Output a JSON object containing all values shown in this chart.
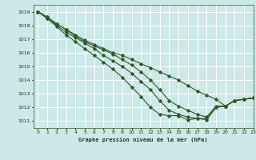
{
  "title": "Graphe pression niveau de la mer (hPa)",
  "background_color": "#cce8e8",
  "grid_color": "#ffffff",
  "line_color": "#2d5a27",
  "xlim": [
    -0.5,
    23
  ],
  "ylim": [
    1010.5,
    1019.5
  ],
  "yticks": [
    1011,
    1012,
    1013,
    1014,
    1015,
    1016,
    1017,
    1018,
    1019
  ],
  "xticks": [
    0,
    1,
    2,
    3,
    4,
    5,
    6,
    7,
    8,
    9,
    10,
    11,
    12,
    13,
    14,
    15,
    16,
    17,
    18,
    19,
    20,
    21,
    22,
    23
  ],
  "series": [
    [
      1019.0,
      1018.6,
      1018.1,
      1017.7,
      1017.3,
      1016.9,
      1016.6,
      1016.3,
      1016.0,
      1015.8,
      1015.5,
      1015.2,
      1014.9,
      1014.6,
      1014.3,
      1014.0,
      1013.6,
      1013.2,
      1012.9,
      1012.6,
      1012.1,
      1012.5,
      1012.6,
      1012.7
    ],
    [
      1019.0,
      1018.6,
      1018.1,
      1017.7,
      1017.2,
      1016.8,
      1016.5,
      1016.2,
      1015.9,
      1015.5,
      1015.1,
      1014.6,
      1014.0,
      1013.3,
      1012.5,
      1012.1,
      1011.8,
      1011.5,
      1011.3,
      1012.1,
      1012.1,
      1012.5,
      1012.6,
      1012.7
    ],
    [
      1019.0,
      1018.5,
      1018.0,
      1017.5,
      1017.1,
      1016.7,
      1016.3,
      1015.8,
      1015.4,
      1015.0,
      1014.5,
      1013.9,
      1013.3,
      1012.5,
      1011.8,
      1011.5,
      1011.3,
      1011.2,
      1011.1,
      1012.0,
      1012.1,
      1012.5,
      1012.6,
      1012.7
    ],
    [
      1019.0,
      1018.5,
      1017.9,
      1017.3,
      1016.8,
      1016.3,
      1015.8,
      1015.3,
      1014.8,
      1014.2,
      1013.5,
      1012.8,
      1012.0,
      1011.5,
      1011.4,
      1011.4,
      1011.1,
      1011.2,
      1011.2,
      1012.0,
      1012.1,
      1012.5,
      1012.6,
      1012.7
    ]
  ]
}
